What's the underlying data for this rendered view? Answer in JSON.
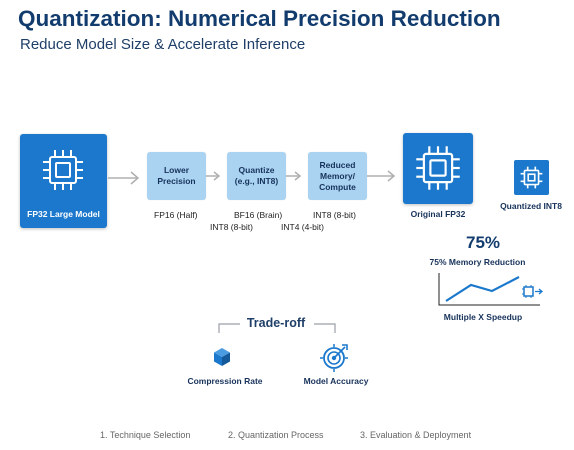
{
  "header": {
    "title": "Quantization: Numerical Precision Reduction",
    "subtitle": "Reduce Model Size & Accelerate Inference"
  },
  "input_model": {
    "label": "FP32 Large Model",
    "icon": "chip-icon"
  },
  "stages": [
    {
      "label": "Lower Precision"
    },
    {
      "label": "Quantize (e.g., INT8)"
    },
    {
      "label": "Reduced Memory/ Compute"
    }
  ],
  "formats": {
    "fp16": "FP16 (Half)",
    "bf16": "BF16 (Brain)",
    "int8_a": "INT8 (8-bit)",
    "int8_b": "INT8 (8-bit)",
    "int4": "INT4 (4-bit)"
  },
  "comparison": {
    "original_label": "Original FP32",
    "quantized_label": "Quantized INT8",
    "reduction_value": "75%",
    "reduction_label": "75% Memory Reduction",
    "speedup_label": "Multiple X Speedup"
  },
  "tradeoff": {
    "title": "Trade-roff",
    "left_label": "Compression Rate",
    "right_label": "Model Accuracy"
  },
  "steps": [
    "1. Technique Selection",
    "2. Quantization Process",
    "3. Evaluation & Deployment"
  ],
  "colors": {
    "primary_blue": "#1b78cc",
    "light_blue": "#a9d3f1",
    "title_navy": "#123c6e",
    "arrow_gray": "#b0b0b0"
  }
}
